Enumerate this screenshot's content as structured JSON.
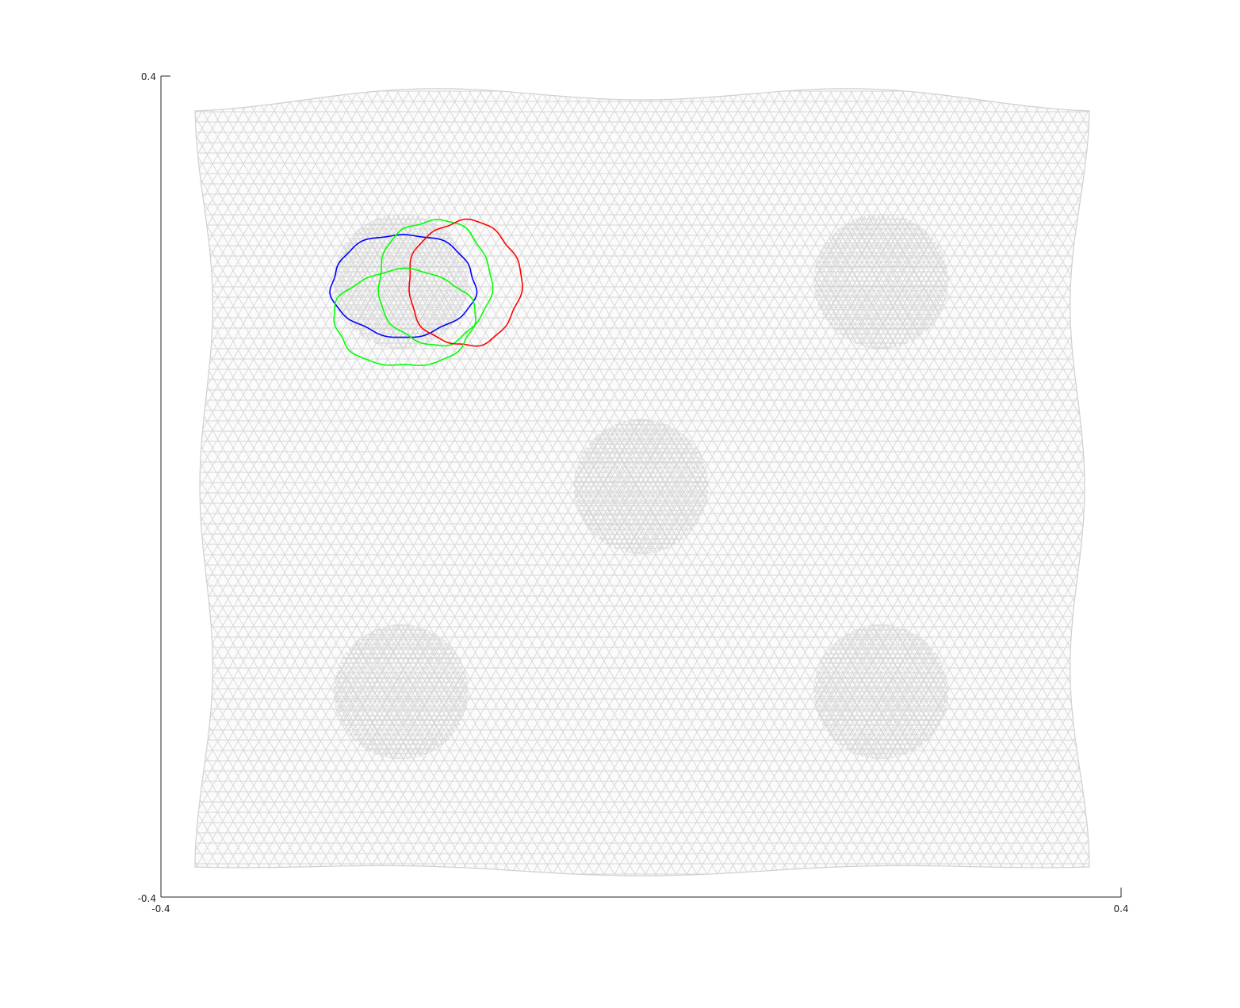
{
  "chart_data": {
    "type": "mesh-plot",
    "xlim": [
      -0.4,
      0.4
    ],
    "ylim": [
      -0.4,
      0.4
    ],
    "x_tick_labels": [
      "-0.4",
      "0.4"
    ],
    "y_tick_labels": [
      "0.4",
      "-0.4"
    ],
    "grid": false,
    "legend": "none",
    "mesh_color": "#d6d6d6",
    "dense_regions": [
      {
        "x": -0.2,
        "y": 0.2
      },
      {
        "x": 0.2,
        "y": 0.2
      },
      {
        "x": 0.0,
        "y": 0.0
      },
      {
        "x": -0.2,
        "y": -0.2
      },
      {
        "x": 0.2,
        "y": -0.2
      }
    ],
    "curves": [
      {
        "color": "#0000ff",
        "cx": -0.198,
        "cy": 0.196,
        "rx": 0.06,
        "ry": 0.05
      },
      {
        "color": "#00ff00",
        "cx": -0.172,
        "cy": 0.199,
        "rx": 0.047,
        "ry": 0.061
      },
      {
        "color": "#ff0000",
        "cx": -0.147,
        "cy": 0.198,
        "rx": 0.047,
        "ry": 0.061
      },
      {
        "color": "#00ff00",
        "cx": -0.197,
        "cy": 0.164,
        "rx": 0.059,
        "ry": 0.047
      }
    ]
  }
}
